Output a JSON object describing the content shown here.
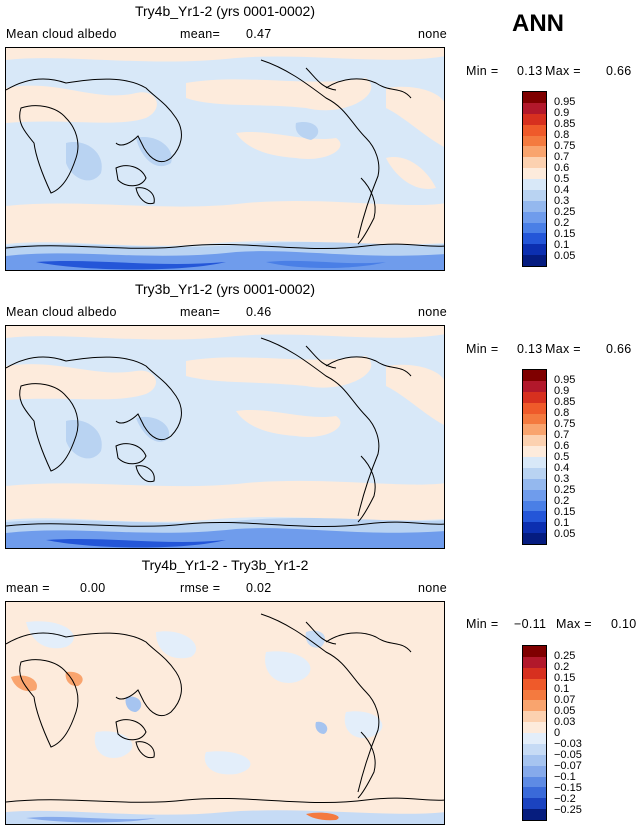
{
  "season": "ANN",
  "panels": [
    {
      "title": "Try4b_Yr1-2 (yrs 0001-0002)",
      "left_label": "Mean cloud albedo",
      "stat_label": "mean=",
      "stat_value": "0.47",
      "right_label": "none",
      "min_label": "Min =",
      "min_value": "0.13",
      "max_label": "Max =",
      "max_value": "0.66",
      "colorbar_levels": [
        "0.95",
        "0.9",
        "0.85",
        "0.8",
        "0.75",
        "0.7",
        "0.6",
        "0.5",
        "0.4",
        "0.3",
        "0.25",
        "0.2",
        "0.15",
        "0.1",
        "0.05"
      ]
    },
    {
      "title": "Try3b_Yr1-2 (yrs 0001-0002)",
      "left_label": "Mean cloud albedo",
      "stat_label": "mean=",
      "stat_value": "0.46",
      "right_label": "none",
      "min_label": "Min =",
      "min_value": "0.13",
      "max_label": "Max =",
      "max_value": "0.66",
      "colorbar_levels": [
        "0.95",
        "0.9",
        "0.85",
        "0.8",
        "0.75",
        "0.7",
        "0.6",
        "0.5",
        "0.4",
        "0.3",
        "0.25",
        "0.2",
        "0.15",
        "0.1",
        "0.05"
      ]
    },
    {
      "title": "Try4b_Yr1-2 - Try3b_Yr1-2",
      "left_label": "mean =",
      "left_value": "0.00",
      "stat_label": "rmse =",
      "stat_value": "0.02",
      "right_label": "none",
      "min_label": "Min =",
      "min_value": "−0.11",
      "max_label": "Max =",
      "max_value": "0.10",
      "colorbar_levels": [
        "0.25",
        "0.2",
        "0.15",
        "0.1",
        "0.07",
        "0.05",
        "0.03",
        "0",
        "−0.03",
        "−0.05",
        "−0.07",
        "−0.1",
        "−0.15",
        "−0.2",
        "−0.25"
      ]
    }
  ],
  "colors": {
    "abs_scale": [
      "#7f0000",
      "#b2182b",
      "#d7301f",
      "#ef5a2a",
      "#f47a3f",
      "#f9a46e",
      "#fcd1b0",
      "#fdebdc",
      "#d8e8f8",
      "#b9d3f2",
      "#94b8ee",
      "#6f9cec",
      "#4a7fe6",
      "#2456d8",
      "#0c2fb0",
      "#051c80"
    ],
    "diff_scale": [
      "#7f0000",
      "#b2182b",
      "#d7301f",
      "#ef5a2a",
      "#f47a3f",
      "#f9a46e",
      "#fcd1b0",
      "#fdebdc",
      "#e3eefa",
      "#c6dbf5",
      "#a6c4f0",
      "#86aaeb",
      "#5e8be4",
      "#3a6ad9",
      "#1b43c0",
      "#061d7e"
    ]
  }
}
